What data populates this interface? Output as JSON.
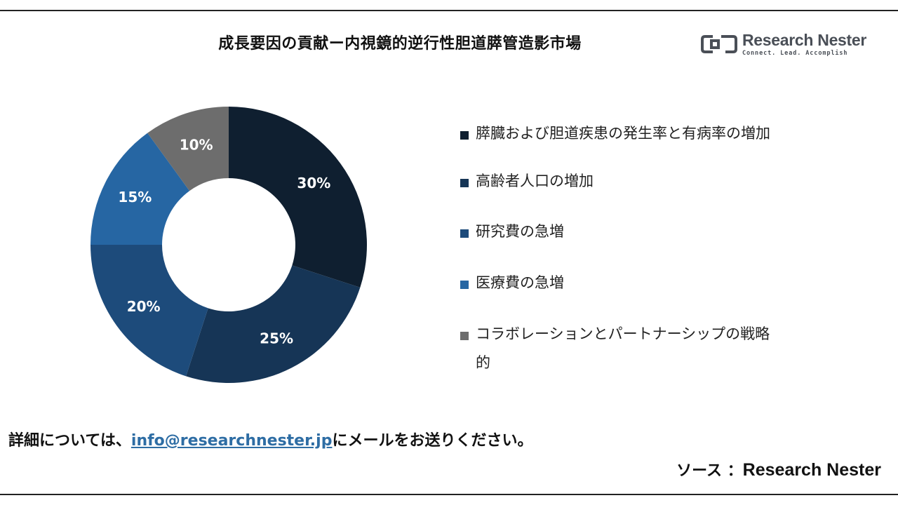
{
  "title": "成長要因の貢献ー内視鏡的逆行性胆道膵管造影市場",
  "logo": {
    "name": "Research Nester",
    "tagline": "Connect. Lead. Accomplish",
    "icon": "research-nester-logo-mark",
    "color": "#4a4f57"
  },
  "chart_data": {
    "type": "pie",
    "variant": "donut",
    "title": "成長要因の貢献ー内視鏡的逆行性胆道膵管造影市場",
    "categories": [
      "膵臓および胆道疾患の発生率と有病率の増加",
      "高齢者人口の増加",
      "研究費の急増",
      "医療費の急増",
      "コラボレーションとパートナーシップの戦略的"
    ],
    "values": [
      30,
      25,
      20,
      15,
      10
    ],
    "labels": [
      "30%",
      "25%",
      "20%",
      "15%",
      "10%"
    ],
    "colors": [
      "#0f1f30",
      "#163556",
      "#1d4b7b",
      "#2666a3",
      "#6d6d6d"
    ],
    "start_angle_deg": 0,
    "direction": "clockwise",
    "legend_position": "right"
  },
  "footer": {
    "prefix": "詳細については、",
    "email": "info@researchnester.jp",
    "suffix": "にメールをお送りください。"
  },
  "source": {
    "label": "ソース",
    "separator": "：",
    "name": "Research Nester"
  }
}
